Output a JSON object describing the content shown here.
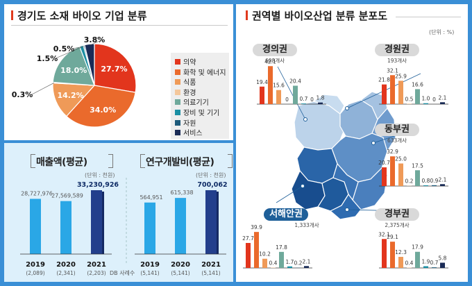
{
  "titles": {
    "classification": "경기도 소재 바이오 기업 분류",
    "distribution": "권역별 바이오산업 분류 분포도",
    "sales": "매출액(평균)",
    "rnd": "연구개발비(평균)"
  },
  "units": {
    "percent": "(단위 : %)",
    "sales": "(단위 : 천원)",
    "rnd": "(단위 : 천원)"
  },
  "db_label": "DB 사례수",
  "colors": {
    "의약": "#e2351d",
    "화학 및 에너지": "#ea6a2c",
    "식품": "#ef9a58",
    "환경": "#f4c79b",
    "의료기기": "#6fa99b",
    "장비 및 기기": "#1b8fa3",
    "자원": "#1d5a7a",
    "서비스": "#1a2b56",
    "bar_light": "#2aa7e6",
    "bar_dark": "#233f8c"
  },
  "chart_data": [
    {
      "type": "pie",
      "title": "경기도 소재 바이오 기업 분류",
      "categories": [
        "의약",
        "화학 및 에너지",
        "식품",
        "환경",
        "의료기기",
        "장비 및 기기",
        "자원",
        "서비스"
      ],
      "values": [
        27.7,
        34.0,
        14.2,
        0.3,
        18.0,
        1.5,
        0.5,
        3.8
      ],
      "labels": [
        "27.7%",
        "34.0%",
        "14.2%",
        "0.3%",
        "18.0%",
        "1.5%",
        "0.5%",
        "3.8%"
      ]
    },
    {
      "type": "bar",
      "title": "매출액(평균)",
      "unit": "(단위 : 천원)",
      "categories": [
        "2019",
        "2020",
        "2021"
      ],
      "sample_sizes": [
        "(2,089)",
        "(2,341)",
        "(2,203)"
      ],
      "values": [
        28727976,
        27569589,
        33230926
      ],
      "labels": [
        "28,727,976",
        "27,569,589",
        "33,230,926"
      ],
      "highlight_index": 2
    },
    {
      "type": "bar",
      "title": "연구개발비(평균)",
      "unit": "(단위 : 천원)",
      "categories": [
        "2019",
        "2020",
        "2021"
      ],
      "sample_sizes": [
        "(5,141)",
        "(5,141)",
        "(5,141)"
      ],
      "values": [
        564951,
        615338,
        700062
      ],
      "labels": [
        "564,951",
        "615,338",
        "700,062"
      ],
      "highlight_index": 2
    },
    {
      "type": "bar",
      "title": "권역별 바이오산업 분류 분포도",
      "unit": "(단위 : %)",
      "categories": [
        "의약",
        "화학 및 에너지",
        "식품",
        "환경",
        "의료기기",
        "장비 및 기기",
        "자원",
        "서비스"
      ],
      "regions": [
        {
          "name": "경의권",
          "count": "608개사",
          "values": [
            19.4,
            42.1,
            15.6,
            0,
            20.4,
            0.7,
            0,
            1.8
          ],
          "labels": [
            "19.4",
            "42.1",
            "15.6",
            "0",
            "20.4",
            "0.7",
            "0",
            "1.8"
          ]
        },
        {
          "name": "경원권",
          "count": "193개사",
          "values": [
            21.8,
            32.1,
            25.9,
            0.5,
            16.6,
            1.0,
            0,
            2.1
          ],
          "labels": [
            "21.8",
            "32.1",
            "25.9",
            "0.5",
            "16.6",
            "1.0",
            "0",
            "2.1"
          ]
        },
        {
          "name": "동부권",
          "count": "633개사",
          "values": [
            20.7,
            32.9,
            25.0,
            0.2,
            17.5,
            0.8,
            0.9,
            2.1
          ],
          "labels": [
            "20.7",
            "32.9",
            "25.0",
            "0.2",
            "17.5",
            "0.8",
            "0.9",
            "2.1"
          ]
        },
        {
          "name": "서해안권",
          "count": "1,333개사",
          "values": [
            27.7,
            39.9,
            10.2,
            0.4,
            17.8,
            1.7,
            0.2,
            2.1
          ],
          "labels": [
            "27.7",
            "39.9",
            "10.2",
            "0.4",
            "17.8",
            "1.7",
            "0.2",
            "2.1"
          ]
        },
        {
          "name": "경부권",
          "count": "2,375개사",
          "values": [
            32.1,
            29.1,
            12.3,
            0.4,
            17.9,
            1.9,
            0.7,
            5.8
          ],
          "labels": [
            "32.1",
            "29.1",
            "12.3",
            "0.4",
            "17.9",
            "1.9",
            "0.7",
            "5.8"
          ]
        }
      ]
    }
  ]
}
